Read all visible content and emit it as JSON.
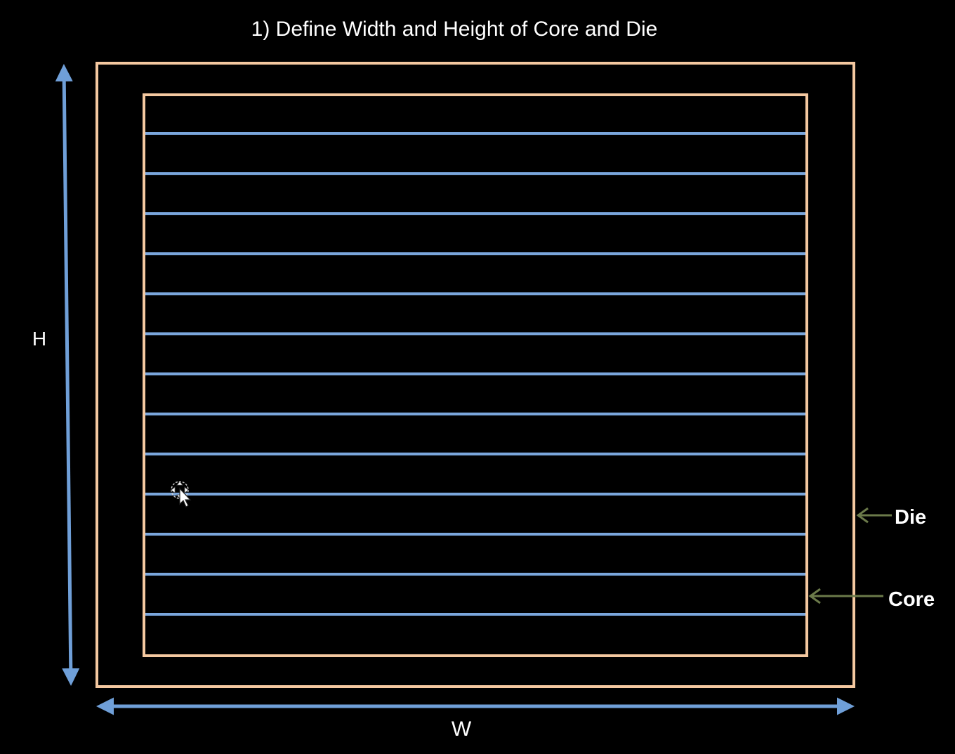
{
  "title": "1) Define Width and Height of Core and Die",
  "labels": {
    "height": "H",
    "width": "W",
    "die": "Die",
    "core": "Core"
  },
  "rows": {
    "count": 13
  },
  "colors": {
    "background": "#000000",
    "die_outline": "#f4c8a0",
    "core_outline": "#f4c8a0",
    "row_line": "#7aa6dc",
    "dimension_arrow": "#6f9fd8",
    "callout_arrow": "#6b7a4a",
    "text": "#ffffff"
  },
  "cursor": {
    "icon": "move-cursor-icon"
  }
}
